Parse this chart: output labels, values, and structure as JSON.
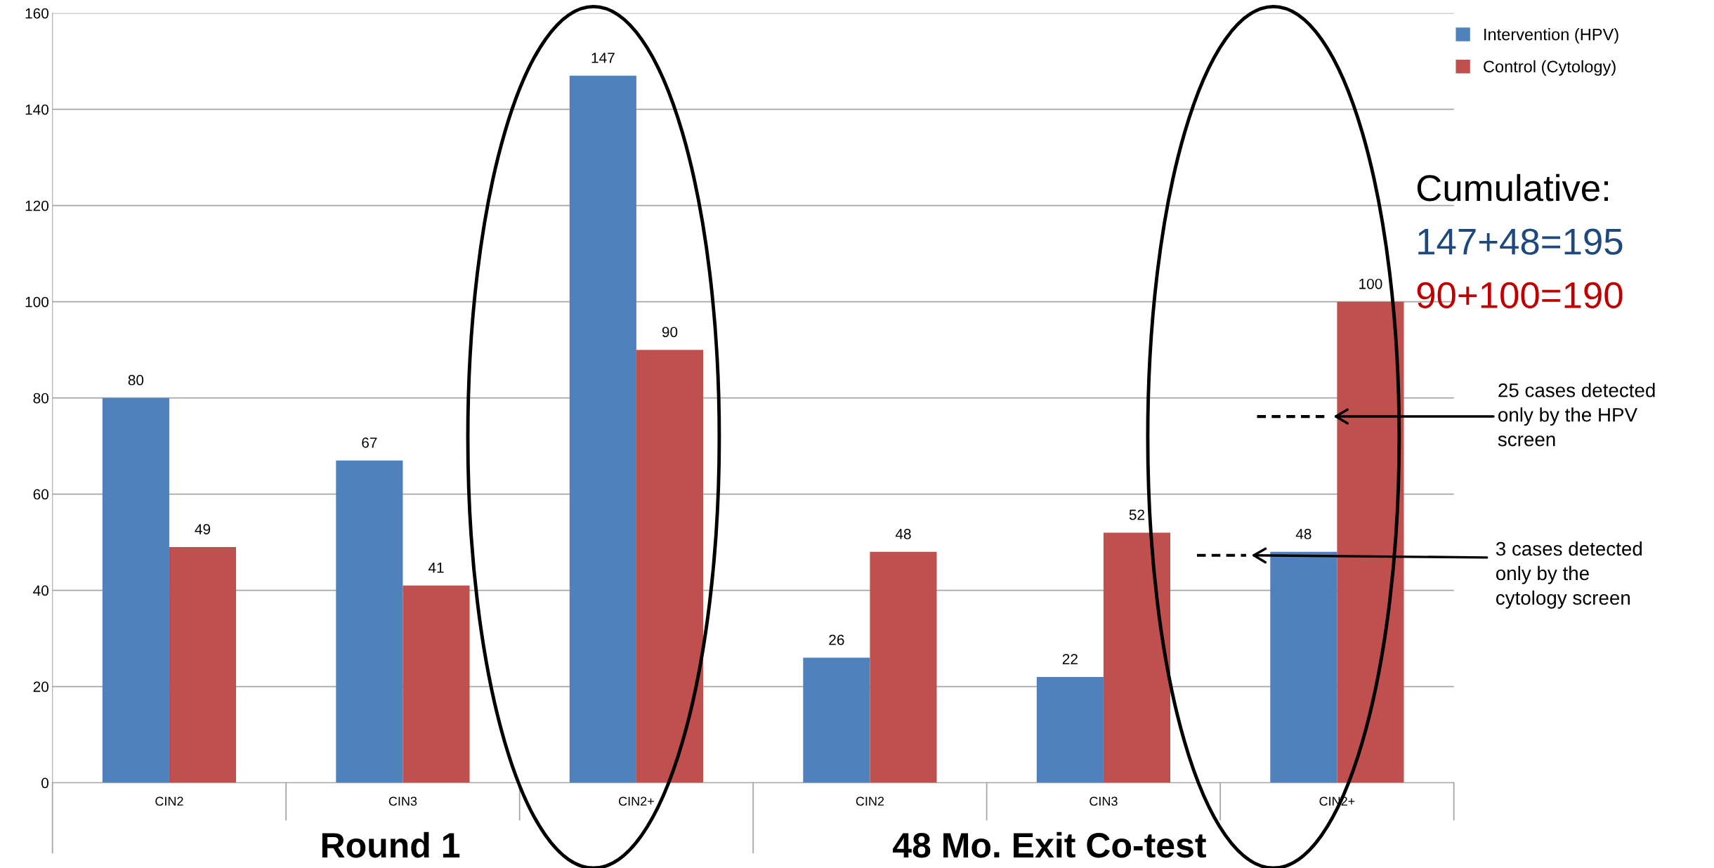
{
  "chart_data": {
    "type": "bar",
    "categories": [
      "CIN2",
      "CIN3",
      "CIN2+",
      "CIN2",
      "CIN3",
      "CIN2+"
    ],
    "series": [
      {
        "name": "Intervention (HPV)",
        "color": "#4f81bd",
        "values": [
          80,
          67,
          147,
          26,
          22,
          48
        ]
      },
      {
        "name": "Control (Cytology)",
        "color": "#c0504d",
        "values": [
          49,
          41,
          90,
          48,
          52,
          100
        ]
      }
    ],
    "ylim": [
      0,
      160
    ],
    "yticks": [
      0,
      20,
      40,
      60,
      80,
      100,
      120,
      140,
      160
    ],
    "grid": "y",
    "legend": "top right",
    "data_labels": true,
    "annotations": [
      {
        "text": "Round 1"
      },
      {
        "text": "48 Mo. Exit Co-test"
      },
      {
        "text": "Cumulative:"
      },
      {
        "text": "147+48=195"
      },
      {
        "text": "90+100=190"
      },
      {
        "text": "25 cases detected\nonly by the HPV\nscreen"
      },
      {
        "text": "3 cases detected\nonly by the\ncytology screen"
      }
    ]
  }
}
